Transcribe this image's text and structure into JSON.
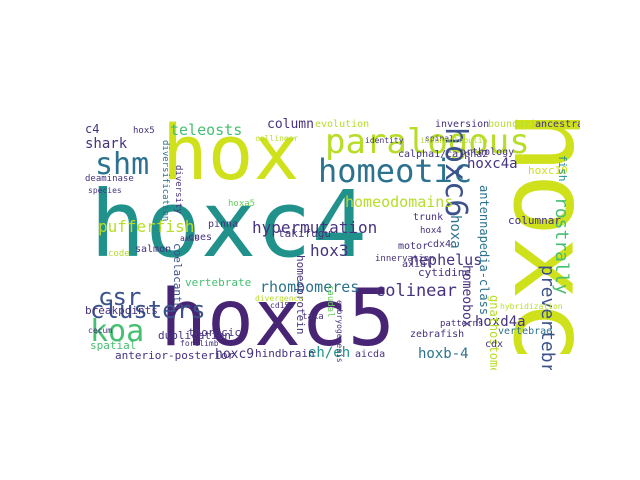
{
  "palette": {
    "yellow": "#cfe11b",
    "yellow2": "#b7dd29",
    "green": "#45bf70",
    "green2": "#67cc5c",
    "teal": "#21918c",
    "teal2": "#2c728e",
    "blue": "#3b528b",
    "purple": "#46327e",
    "dark": "#440154",
    "indigo": "#482475"
  },
  "words": [
    {
      "text": "hoxc4",
      "color": "teal"
    },
    {
      "text": "hoxc5",
      "color": "indigo"
    },
    {
      "text": "hoxc",
      "color": "yellow"
    },
    {
      "text": "hox",
      "color": "yellow"
    },
    {
      "text": "paralogous",
      "color": "yellow2"
    },
    {
      "text": "homeotic",
      "color": "teal2"
    },
    {
      "text": "hoxc6",
      "color": "blue"
    },
    {
      "text": "shm",
      "color": "teal2"
    },
    {
      "text": "koa",
      "color": "green"
    },
    {
      "text": "csr",
      "color": "blue"
    },
    {
      "text": "clusters",
      "color": "blue"
    },
    {
      "text": "pufferfish",
      "color": "yellow2"
    },
    {
      "text": "hypermutation",
      "color": "purple"
    },
    {
      "text": "homeodomains",
      "color": "yellow2"
    },
    {
      "text": "rostrally",
      "color": "green"
    },
    {
      "text": "prevertebral",
      "color": "blue"
    },
    {
      "text": "rhombomeres",
      "color": "teal2"
    },
    {
      "text": "colinear",
      "color": "purple"
    },
    {
      "text": "hoxc4a",
      "color": "purple"
    },
    {
      "text": "nephelus",
      "color": "purple"
    },
    {
      "text": "homeobox",
      "color": "purple"
    },
    {
      "text": "hoxd4a",
      "color": "purple"
    },
    {
      "text": "hox3",
      "color": "purple"
    },
    {
      "text": "hoxc9",
      "color": "purple"
    },
    {
      "text": "eh/eh",
      "color": "teal"
    },
    {
      "text": "hoxb-4",
      "color": "teal2"
    },
    {
      "text": "teleosts",
      "color": "green"
    },
    {
      "text": "column",
      "color": "purple"
    },
    {
      "text": "shark",
      "color": "purple"
    },
    {
      "text": "c4",
      "color": "purple"
    },
    {
      "text": "hoxa",
      "color": "teal2"
    },
    {
      "text": "antennapedia-class",
      "color": "teal2"
    },
    {
      "text": "hoxc10",
      "color": "yellow"
    },
    {
      "text": "fish",
      "color": "teal"
    },
    {
      "text": "takifugu",
      "color": "purple"
    },
    {
      "text": "homeoprotein",
      "color": "purple"
    },
    {
      "text": "coelacanth",
      "color": "blue"
    },
    {
      "text": "hoxa5",
      "color": "green2"
    },
    {
      "text": "pinna",
      "color": "purple"
    },
    {
      "text": "cnes",
      "color": "purple"
    },
    {
      "text": "breakpoints",
      "color": "purple"
    },
    {
      "text": "duplication",
      "color": "purple"
    },
    {
      "text": "vertebrate",
      "color": "green"
    },
    {
      "text": "thoracic",
      "color": "purple"
    },
    {
      "text": "spatial",
      "color": "green"
    },
    {
      "text": "anterior-posterior",
      "color": "purple"
    },
    {
      "text": "hindbrain",
      "color": "purple"
    },
    {
      "text": "salmon",
      "color": "purple"
    },
    {
      "text": "code",
      "color": "yellow2"
    },
    {
      "text": "cytidine",
      "color": "purple"
    },
    {
      "text": "axial",
      "color": "purple"
    },
    {
      "text": "motor",
      "color": "purple"
    },
    {
      "text": "hox4",
      "color": "purple"
    },
    {
      "text": "cdx4",
      "color": "purple"
    },
    {
      "text": "trunk",
      "color": "purple"
    },
    {
      "text": "innervation",
      "color": "purple"
    },
    {
      "text": "gnathostome",
      "color": "yellow2"
    },
    {
      "text": "columnar",
      "color": "purple"
    },
    {
      "text": "vertebrae",
      "color": "teal2"
    },
    {
      "text": "cdx",
      "color": "purple"
    },
    {
      "text": "zebrafish",
      "color": "purple"
    },
    {
      "text": "patterns",
      "color": "purple"
    },
    {
      "text": "evolution",
      "color": "yellow2"
    },
    {
      "text": "inversion",
      "color": "purple"
    },
    {
      "text": "boundaries",
      "color": "yellow2"
    },
    {
      "text": "ancestral",
      "color": "purple"
    },
    {
      "text": "orthology",
      "color": "purple"
    },
    {
      "text": "calpha1/calpha2",
      "color": "purple"
    },
    {
      "text": "hox5",
      "color": "purple"
    },
    {
      "text": "deaminase",
      "color": "purple"
    },
    {
      "text": "species",
      "color": "purple"
    },
    {
      "text": "diversification",
      "color": "teal2"
    },
    {
      "text": "diversity",
      "color": "purple"
    },
    {
      "text": "identity",
      "color": "purple"
    },
    {
      "text": "caudal",
      "color": "green2"
    },
    {
      "text": "aicda",
      "color": "purple"
    },
    {
      "text": "taxa",
      "color": "purple"
    },
    {
      "text": "cd154",
      "color": "purple"
    },
    {
      "text": "cecum",
      "color": "purple"
    },
    {
      "text": "forelimb",
      "color": "purple"
    },
    {
      "text": "spinal",
      "color": "purple"
    },
    {
      "text": "hybridization",
      "color": "yellow2"
    },
    {
      "text": "immunoglobulin",
      "color": "yellow2"
    },
    {
      "text": "collinear",
      "color": "yellow2"
    },
    {
      "text": "axis",
      "color": "purple"
    },
    {
      "text": "embryogenesis",
      "color": "purple"
    },
    {
      "text": "divergence",
      "color": "yellow2"
    }
  ]
}
